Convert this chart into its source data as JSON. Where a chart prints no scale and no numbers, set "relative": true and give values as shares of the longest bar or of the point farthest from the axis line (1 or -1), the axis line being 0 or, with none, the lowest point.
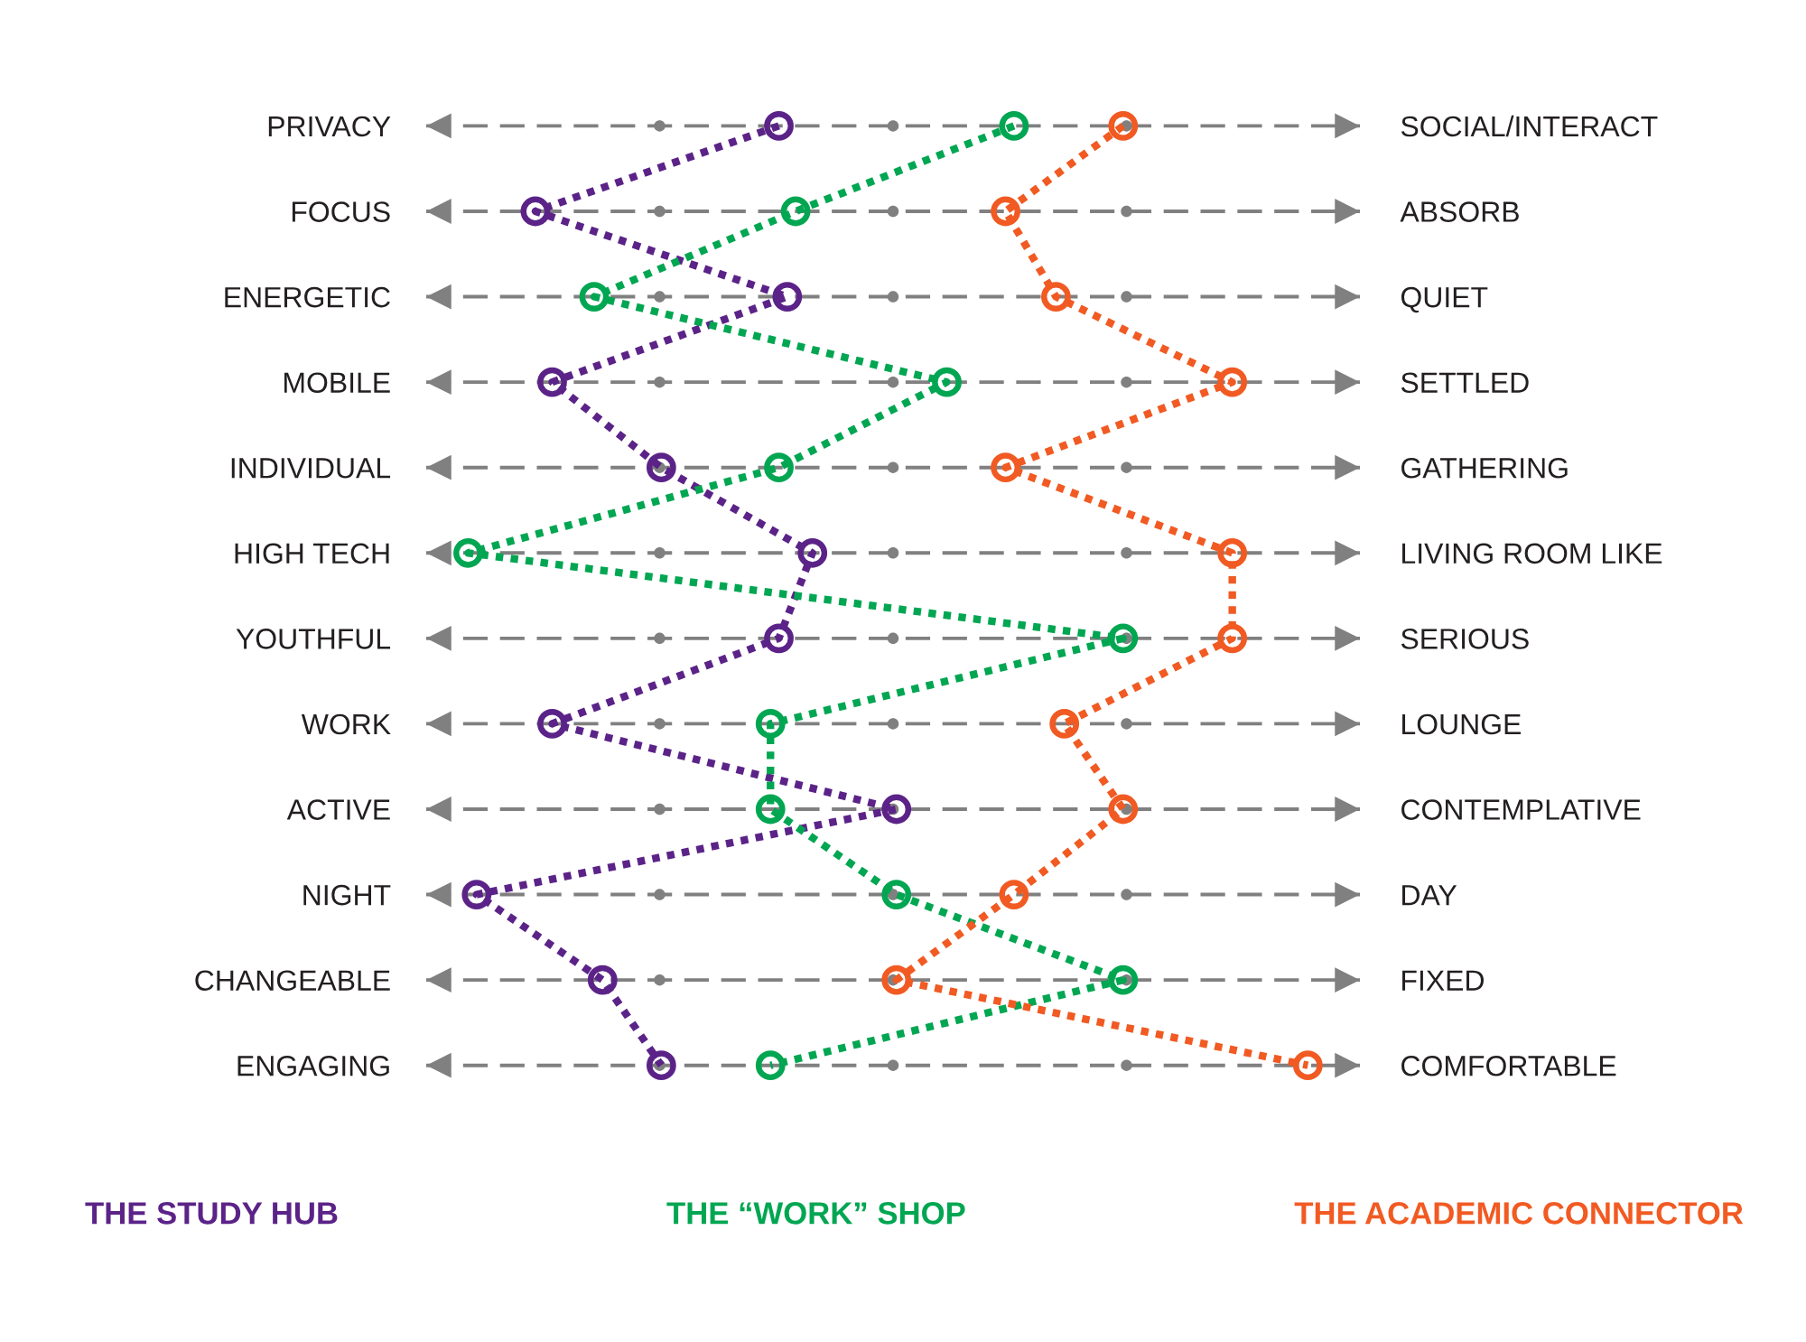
{
  "chart_data": {
    "type": "line",
    "orientation": "horizontal",
    "relative": true,
    "categories": [
      "PRIVACY",
      "FOCUS",
      "ENERGETIC",
      "MOBILE",
      "INDIVIDUAL",
      "HIGH TECH",
      "YOUTHFUL",
      "WORK",
      "ACTIVE",
      "NIGHT",
      "CHANGEABLE",
      "ENGAGING"
    ],
    "y2_categories": [
      "SOCIAL/INTERACT",
      "ABSORB",
      "QUIET",
      "SETTLED",
      "GATHERING",
      "LIVING ROOM LIKE",
      "SERIOUS",
      "LOUNGE",
      "CONTEMPLATIVE",
      "DAY",
      "FIXED",
      "COMFORTABLE"
    ],
    "series": [
      {
        "name": "THE STUDY HUB",
        "color": "#5b2388",
        "values": [
          0.37,
          0.08,
          0.38,
          0.1,
          0.23,
          0.41,
          0.37,
          0.1,
          0.51,
          0.01,
          0.16,
          0.23
        ]
      },
      {
        "name": "THE “WORK” SHOP",
        "color": "#00a651",
        "values": [
          0.65,
          0.39,
          0.15,
          0.57,
          0.37,
          0,
          0.78,
          0.36,
          0.36,
          0.51,
          0.78,
          0.36
        ]
      },
      {
        "name": "THE ACADEMIC CONNECTOR",
        "color": "#f15a22",
        "values": [
          0.78,
          0.64,
          0.7,
          0.91,
          0.64,
          0.91,
          0.91,
          0.71,
          0.78,
          0.65,
          0.51,
          1
        ]
      }
    ],
    "marker": "circle",
    "line_style": "dotted",
    "grid": "y",
    "legend": "bottom"
  }
}
